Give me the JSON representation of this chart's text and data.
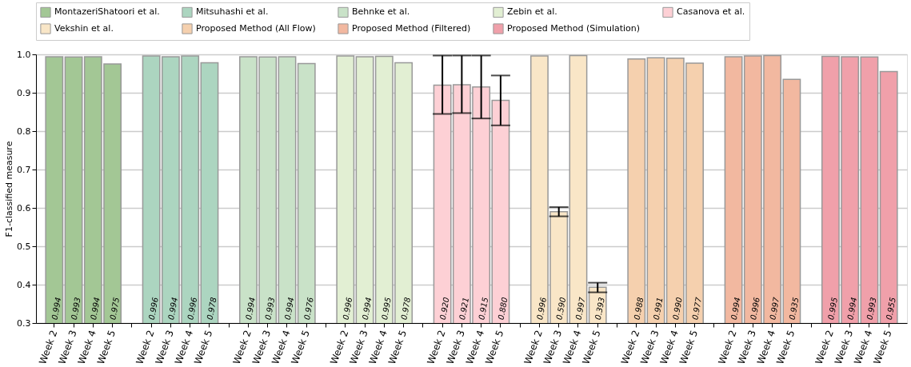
{
  "chart_data": {
    "type": "bar",
    "ylabel": "F1-classified measure",
    "categories": [
      "Week 2",
      "Week 3",
      "Week 4",
      "Week 5",
      "Week 2",
      "Week 3",
      "Week 4",
      "Week 5",
      "Week 2",
      "Week 3",
      "Week 4",
      "Week 5",
      "Week 2",
      "Week 3",
      "Week 4",
      "Week 5",
      "Week 2",
      "Week 3",
      "Week 4",
      "Week 5",
      "Week 2",
      "Week 3",
      "Week 4",
      "Week 5",
      "Week 2",
      "Week 3",
      "Week 4",
      "Week 5",
      "Week 2",
      "Week 3",
      "Week 4",
      "Week 5",
      "Week 2",
      "Week 3",
      "Week 4",
      "Week 5"
    ],
    "series": [
      {
        "name": "MontazeriShatoori et al.",
        "color": "#a3c795",
        "values": [
          0.994,
          0.993,
          0.994,
          0.975,
          null,
          null,
          null,
          null,
          null,
          null,
          null,
          null,
          null,
          null,
          null,
          null,
          null,
          null,
          null,
          null,
          null,
          null,
          null,
          null,
          null,
          null,
          null,
          null,
          null,
          null,
          null,
          null,
          null,
          null,
          null,
          null
        ],
        "value_labels": [
          "0.994",
          "0.993",
          "0.994",
          "0.975",
          null,
          null,
          null,
          null,
          null,
          null,
          null,
          null,
          null,
          null,
          null,
          null,
          null,
          null,
          null,
          null,
          null,
          null,
          null,
          null,
          null,
          null,
          null,
          null,
          null,
          null,
          null,
          null,
          null,
          null,
          null,
          null
        ]
      },
      {
        "name": "Mitsuhashi et al.",
        "color": "#acd5c0",
        "values": [
          null,
          null,
          null,
          null,
          0.996,
          0.994,
          0.996,
          0.978,
          null,
          null,
          null,
          null,
          null,
          null,
          null,
          null,
          null,
          null,
          null,
          null,
          null,
          null,
          null,
          null,
          null,
          null,
          null,
          null,
          null,
          null,
          null,
          null,
          null,
          null,
          null,
          null
        ],
        "value_labels": [
          null,
          null,
          null,
          null,
          "0.996",
          "0.994",
          "0.996",
          "0.978",
          null,
          null,
          null,
          null,
          null,
          null,
          null,
          null,
          null,
          null,
          null,
          null,
          null,
          null,
          null,
          null,
          null,
          null,
          null,
          null,
          null,
          null,
          null,
          null,
          null,
          null,
          null,
          null
        ]
      },
      {
        "name": "Behnke et al.",
        "color": "#c9e2c8",
        "values": [
          null,
          null,
          null,
          null,
          null,
          null,
          null,
          null,
          0.994,
          0.993,
          0.994,
          0.976,
          null,
          null,
          null,
          null,
          null,
          null,
          null,
          null,
          null,
          null,
          null,
          null,
          null,
          null,
          null,
          null,
          null,
          null,
          null,
          null,
          null,
          null,
          null,
          null
        ],
        "value_labels": [
          null,
          null,
          null,
          null,
          null,
          null,
          null,
          null,
          "0.994",
          "0.993",
          "0.994",
          "0.976",
          null,
          null,
          null,
          null,
          null,
          null,
          null,
          null,
          null,
          null,
          null,
          null,
          null,
          null,
          null,
          null,
          null,
          null,
          null,
          null,
          null,
          null,
          null,
          null
        ]
      },
      {
        "name": "Zebin et al.",
        "color": "#e2efd3",
        "values": [
          null,
          null,
          null,
          null,
          null,
          null,
          null,
          null,
          null,
          null,
          null,
          null,
          0.996,
          0.994,
          0.995,
          0.978,
          null,
          null,
          null,
          null,
          null,
          null,
          null,
          null,
          null,
          null,
          null,
          null,
          null,
          null,
          null,
          null,
          null,
          null,
          null,
          null
        ],
        "value_labels": [
          null,
          null,
          null,
          null,
          null,
          null,
          null,
          null,
          null,
          null,
          null,
          null,
          "0.996",
          "0.994",
          "0.995",
          "0.978",
          null,
          null,
          null,
          null,
          null,
          null,
          null,
          null,
          null,
          null,
          null,
          null,
          null,
          null,
          null,
          null,
          null,
          null,
          null,
          null
        ]
      },
      {
        "name": "Casanova et al.",
        "color": "#fdd0d5",
        "values": [
          null,
          null,
          null,
          null,
          null,
          null,
          null,
          null,
          null,
          null,
          null,
          null,
          null,
          null,
          null,
          null,
          0.92,
          0.921,
          0.915,
          0.88,
          null,
          null,
          null,
          null,
          null,
          null,
          null,
          null,
          null,
          null,
          null,
          null,
          null,
          null,
          null,
          null
        ],
        "value_labels": [
          null,
          null,
          null,
          null,
          null,
          null,
          null,
          null,
          null,
          null,
          null,
          null,
          null,
          null,
          null,
          null,
          "0.920",
          "0.921",
          "0.915",
          "0.880",
          null,
          null,
          null,
          null,
          null,
          null,
          null,
          null,
          null,
          null,
          null,
          null,
          null,
          null,
          null,
          null
        ],
        "errors": [
          null,
          null,
          null,
          null,
          null,
          null,
          null,
          null,
          null,
          null,
          null,
          null,
          null,
          null,
          null,
          null,
          [
            0.845,
            0.997
          ],
          [
            0.847,
            0.997
          ],
          [
            0.833,
            0.997
          ],
          [
            0.815,
            0.945
          ],
          null,
          null,
          null,
          null,
          null,
          null,
          null,
          null,
          null,
          null,
          null,
          null,
          null,
          null,
          null,
          null
        ]
      },
      {
        "name": "Vekshin et al.",
        "color": "#f9e6c7",
        "values": [
          null,
          null,
          null,
          null,
          null,
          null,
          null,
          null,
          null,
          null,
          null,
          null,
          null,
          null,
          null,
          null,
          null,
          null,
          null,
          null,
          0.996,
          0.59,
          0.997,
          0.393,
          null,
          null,
          null,
          null,
          null,
          null,
          null,
          null,
          null,
          null,
          null,
          null
        ],
        "value_labels": [
          null,
          null,
          null,
          null,
          null,
          null,
          null,
          null,
          null,
          null,
          null,
          null,
          null,
          null,
          null,
          null,
          null,
          null,
          null,
          null,
          "0.996",
          "0.590",
          "0.997",
          "0.393",
          null,
          null,
          null,
          null,
          null,
          null,
          null,
          null,
          null,
          null,
          null,
          null
        ],
        "errors": [
          null,
          null,
          null,
          null,
          null,
          null,
          null,
          null,
          null,
          null,
          null,
          null,
          null,
          null,
          null,
          null,
          null,
          null,
          null,
          null,
          null,
          [
            0.578,
            0.602
          ],
          null,
          [
            0.38,
            0.405
          ],
          null,
          null,
          null,
          null,
          null,
          null,
          null,
          null,
          null,
          null,
          null,
          null
        ]
      },
      {
        "name": "Proposed Method (All Flow)",
        "color": "#f5d0ae",
        "values": [
          null,
          null,
          null,
          null,
          null,
          null,
          null,
          null,
          null,
          null,
          null,
          null,
          null,
          null,
          null,
          null,
          null,
          null,
          null,
          null,
          null,
          null,
          null,
          null,
          0.988,
          0.991,
          0.99,
          0.977,
          null,
          null,
          null,
          null,
          null,
          null,
          null,
          null
        ],
        "value_labels": [
          null,
          null,
          null,
          null,
          null,
          null,
          null,
          null,
          null,
          null,
          null,
          null,
          null,
          null,
          null,
          null,
          null,
          null,
          null,
          null,
          null,
          null,
          null,
          null,
          "0.988",
          "0.991",
          "0.990",
          "0.977",
          null,
          null,
          null,
          null,
          null,
          null,
          null,
          null
        ]
      },
      {
        "name": "Proposed Method (Filtered)",
        "color": "#f2b8a0",
        "values": [
          null,
          null,
          null,
          null,
          null,
          null,
          null,
          null,
          null,
          null,
          null,
          null,
          null,
          null,
          null,
          null,
          null,
          null,
          null,
          null,
          null,
          null,
          null,
          null,
          null,
          null,
          null,
          null,
          0.994,
          0.996,
          0.997,
          0.935,
          null,
          null,
          null,
          null
        ],
        "value_labels": [
          null,
          null,
          null,
          null,
          null,
          null,
          null,
          null,
          null,
          null,
          null,
          null,
          null,
          null,
          null,
          null,
          null,
          null,
          null,
          null,
          null,
          null,
          null,
          null,
          null,
          null,
          null,
          null,
          "0.994",
          "0.996",
          "0.997",
          "0.935",
          null,
          null,
          null,
          null
        ]
      },
      {
        "name": "Proposed Method (Simulation)",
        "color": "#f0a0aa",
        "values": [
          null,
          null,
          null,
          null,
          null,
          null,
          null,
          null,
          null,
          null,
          null,
          null,
          null,
          null,
          null,
          null,
          null,
          null,
          null,
          null,
          null,
          null,
          null,
          null,
          null,
          null,
          null,
          null,
          null,
          null,
          null,
          null,
          0.995,
          0.994,
          0.993,
          0.955
        ],
        "value_labels": [
          null,
          null,
          null,
          null,
          null,
          null,
          null,
          null,
          null,
          null,
          null,
          null,
          null,
          null,
          null,
          null,
          null,
          null,
          null,
          null,
          null,
          null,
          null,
          null,
          null,
          null,
          null,
          null,
          null,
          null,
          null,
          null,
          "0.995",
          "0.994",
          "0.993",
          "0.955"
        ]
      }
    ],
    "ylim": [
      0.3,
      1.0
    ],
    "yticks": [
      0.3,
      0.4,
      0.5,
      0.6,
      0.7,
      0.8,
      0.9,
      {
        "value": 1.0,
        "label": "1.0"
      }
    ],
    "grid": "y",
    "legend": "top"
  }
}
